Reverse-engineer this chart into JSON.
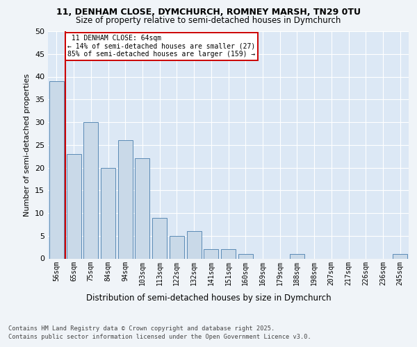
{
  "title_line1": "11, DENHAM CLOSE, DYMCHURCH, ROMNEY MARSH, TN29 0TU",
  "title_line2": "Size of property relative to semi-detached houses in Dymchurch",
  "xlabel": "Distribution of semi-detached houses by size in Dymchurch",
  "ylabel": "Number of semi-detached properties",
  "categories": [
    "56sqm",
    "65sqm",
    "75sqm",
    "84sqm",
    "94sqm",
    "103sqm",
    "113sqm",
    "122sqm",
    "132sqm",
    "141sqm",
    "151sqm",
    "160sqm",
    "169sqm",
    "179sqm",
    "188sqm",
    "198sqm",
    "207sqm",
    "217sqm",
    "226sqm",
    "236sqm",
    "245sqm"
  ],
  "values": [
    39,
    23,
    30,
    20,
    26,
    22,
    9,
    5,
    6,
    2,
    2,
    1,
    0,
    0,
    1,
    0,
    0,
    0,
    0,
    0,
    1
  ],
  "bar_color": "#c9d9e8",
  "bar_edge_color": "#5a8ab5",
  "property_label": "11 DENHAM CLOSE: 64sqm",
  "pct_smaller": 14,
  "count_smaller": 27,
  "pct_larger": 85,
  "count_larger": 159,
  "ylim": [
    0,
    50
  ],
  "yticks": [
    0,
    5,
    10,
    15,
    20,
    25,
    30,
    35,
    40,
    45,
    50
  ],
  "bg_color": "#dce8f5",
  "fig_bg_color": "#f0f4f8",
  "footer_line1": "Contains HM Land Registry data © Crown copyright and database right 2025.",
  "footer_line2": "Contains public sector information licensed under the Open Government Licence v3.0.",
  "box_color": "#cc0000",
  "vline_color": "#cc0000"
}
